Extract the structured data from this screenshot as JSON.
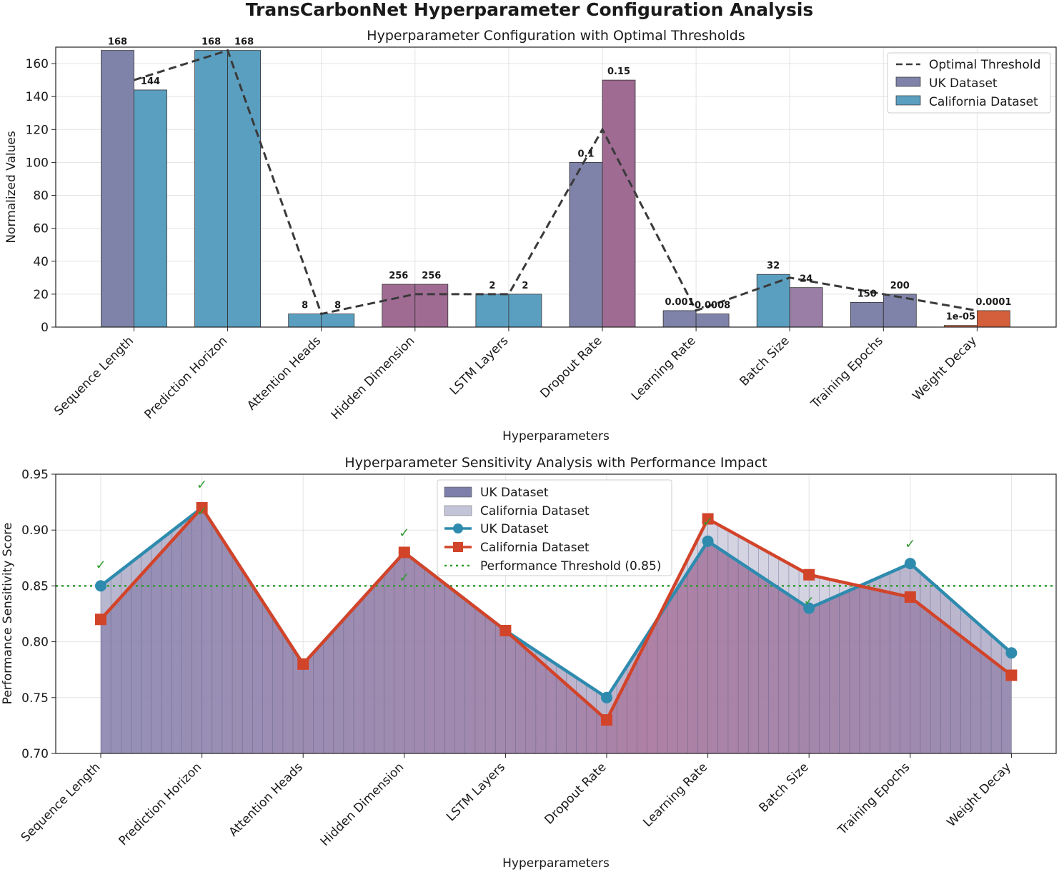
{
  "suptitle": "TransCarbonNet Hyperparameter Configuration Analysis",
  "chart_data": [
    {
      "type": "bar",
      "title": "Hyperparameter Configuration with Optimal Thresholds",
      "xlabel": "Hyperparameters",
      "ylabel": "Normalized Values",
      "ylim": [
        0,
        170
      ],
      "yticks": [
        0,
        20,
        40,
        60,
        80,
        100,
        120,
        140,
        160
      ],
      "grid": true,
      "legend_position": "top-right",
      "categories": [
        "Sequence Length",
        "Prediction Horizon",
        "Attention Heads",
        "Hidden Dimension",
        "LSTM Layers",
        "Dropout Rate",
        "Learning Rate",
        "Batch Size",
        "Training Epochs",
        "Weight Decay"
      ],
      "series": [
        {
          "name": "UK Dataset",
          "legend_color": "#7f83a9",
          "values": [
            168,
            168,
            8,
            26,
            20,
            100,
            10,
            32,
            15,
            1
          ],
          "labels": [
            "168",
            "168",
            "8",
            "256",
            "2",
            "0.1",
            "0.001",
            "32",
            "150",
            "1e-05"
          ],
          "colors": [
            "#7f83a9",
            "#5b9fc0",
            "#5b9fc0",
            "#a06b93",
            "#5b9fc0",
            "#7f83a9",
            "#7f83a9",
            "#5b9fc0",
            "#7f83a9",
            "#d45f3c"
          ]
        },
        {
          "name": "California Dataset",
          "legend_color": "#5b9fc0",
          "values": [
            144,
            168,
            8,
            26,
            20,
            150,
            8,
            24,
            20,
            10
          ],
          "labels": [
            "144",
            "168",
            "8",
            "256",
            "2",
            "0.15",
            "0.0008",
            "24",
            "200",
            "0.0001"
          ],
          "colors": [
            "#5b9fc0",
            "#5b9fc0",
            "#5b9fc0",
            "#a06b93",
            "#5b9fc0",
            "#a06b93",
            "#7f83a9",
            "#9a7ea6",
            "#7f83a9",
            "#d45f3c"
          ]
        }
      ],
      "threshold": {
        "name": "Optimal Threshold",
        "values": [
          150,
          168,
          8,
          20,
          20,
          120,
          10,
          30,
          20,
          10
        ]
      }
    },
    {
      "type": "line",
      "title": "Hyperparameter Sensitivity Analysis with Performance Impact",
      "xlabel": "Hyperparameters",
      "ylabel": "Performance Sensitivity Score",
      "ylim": [
        0.7,
        0.95
      ],
      "yticks": [
        "0.70",
        "0.75",
        "0.80",
        "0.85",
        "0.90",
        "0.95"
      ],
      "grid": true,
      "legend_position": "top-center",
      "categories": [
        "Sequence Length",
        "Prediction Horizon",
        "Attention Heads",
        "Hidden Dimension",
        "LSTM Layers",
        "Dropout Rate",
        "Learning Rate",
        "Batch Size",
        "Training Epochs",
        "Weight Decay"
      ],
      "series": [
        {
          "name": "UK Dataset",
          "values": [
            0.85,
            0.92,
            0.78,
            0.88,
            0.81,
            0.75,
            0.89,
            0.83,
            0.87,
            0.79
          ],
          "color": "#2e8bae",
          "marker": "circle"
        },
        {
          "name": "California Dataset",
          "values": [
            0.82,
            0.92,
            0.78,
            0.88,
            0.81,
            0.73,
            0.91,
            0.86,
            0.84,
            0.77
          ],
          "color": "#d2442a",
          "marker": "square"
        }
      ],
      "fill_legend": [
        {
          "name": "UK Dataset",
          "color": "#7d7faa"
        },
        {
          "name": "California Dataset",
          "color": "#c4c4d8"
        }
      ],
      "threshold": {
        "name": "Performance Threshold (0.85)",
        "value": 0.85,
        "color": "#2e9c2e"
      },
      "check_mark": "✓",
      "checks": [
        {
          "index": 0,
          "value": 0.868
        },
        {
          "index": 1,
          "value": 0.94
        },
        {
          "index": 1,
          "value": 0.916
        },
        {
          "index": 3,
          "value": 0.897
        },
        {
          "index": 3,
          "value": 0.857
        },
        {
          "index": 6,
          "value": 0.907
        },
        {
          "index": 7,
          "value": 0.836
        },
        {
          "index": 8,
          "value": 0.887
        }
      ]
    }
  ]
}
